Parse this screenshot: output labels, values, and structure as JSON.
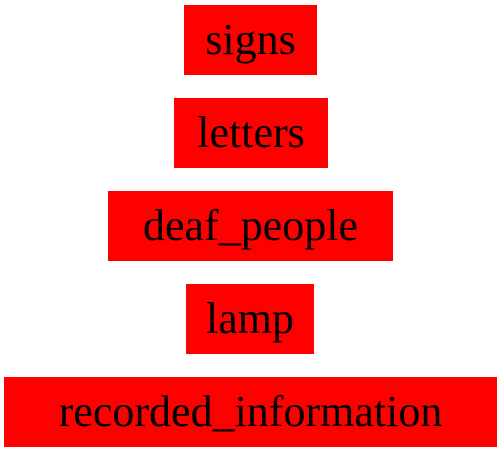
{
  "nodes": [
    {
      "label": "signs"
    },
    {
      "label": "letters"
    },
    {
      "label": "deaf_people"
    },
    {
      "label": "lamp"
    },
    {
      "label": "recorded_information"
    }
  ],
  "colors": {
    "node_fill": "#ff0000",
    "text": "#000000",
    "background": "#ffffff"
  }
}
